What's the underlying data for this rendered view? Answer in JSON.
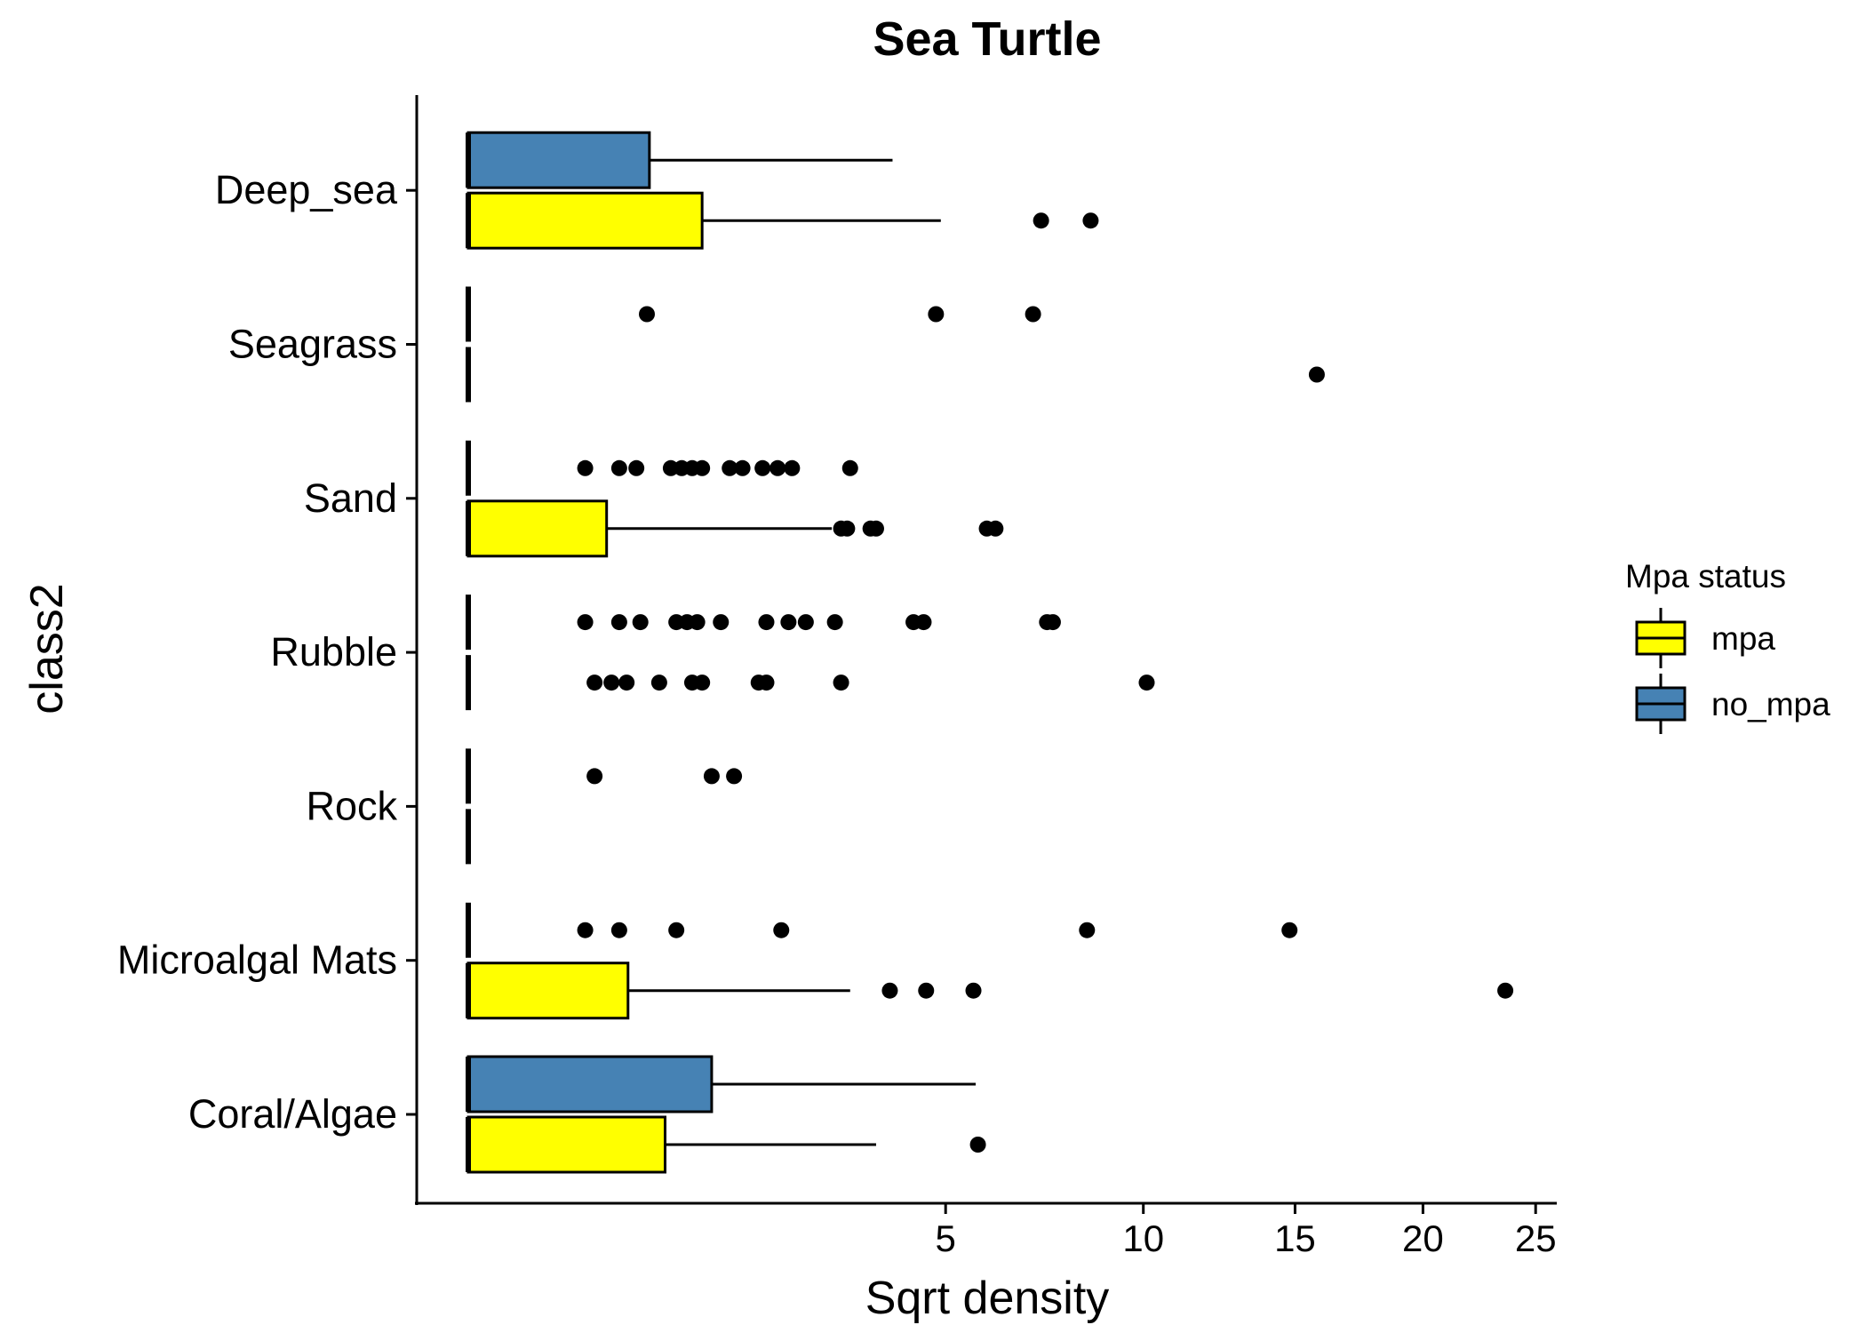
{
  "chart_data": {
    "type": "boxplot",
    "orientation": "horizontal",
    "title": "Sea Turtle",
    "xlabel": "Sqrt density",
    "ylabel": "class2",
    "x_scale": "sqrt",
    "xlim": [
      0,
      25.2
    ],
    "x_ticks": [
      5,
      10,
      15,
      20,
      25
    ],
    "x_tick_labels": [
      "5",
      "10",
      "15",
      "20",
      "25"
    ],
    "categories": [
      "Coral/Algae",
      "Microalgal Mats",
      "Rock",
      "Rubble",
      "Sand",
      "Seagrass",
      "Deep_sea"
    ],
    "legend": {
      "title": "Mpa status",
      "position": "right",
      "entries": [
        {
          "key": "mpa",
          "label": "mpa",
          "color": "#FFFF00"
        },
        {
          "key": "no_mpa",
          "label": "no_mpa",
          "color": "#4682B4"
        }
      ]
    },
    "series": [
      {
        "name": "mpa",
        "color": "#FFFF00",
        "boxes": [
          {
            "category": "Coral/Algae",
            "min": 0,
            "q1": 0,
            "median": 0,
            "q3": 0.85,
            "max": 3.65,
            "outliers": [
              5.7
            ]
          },
          {
            "category": "Microalgal Mats",
            "min": 0,
            "q1": 0,
            "median": 0,
            "q3": 0.56,
            "max": 3.2,
            "outliers": [
              3.9,
              4.6,
              5.6,
              23.6
            ]
          },
          {
            "category": "Rock",
            "min": 0,
            "q1": 0,
            "median": 0,
            "q3": 0,
            "max": 0,
            "outliers": []
          },
          {
            "category": "Rubble",
            "min": 0,
            "q1": 0,
            "median": 0,
            "q3": 0,
            "max": 0,
            "outliers": [
              0.35,
              0.45,
              0.55,
              0.8,
              1.1,
              1.2,
              1.85,
              1.95,
              3.05,
              10.1
            ]
          },
          {
            "category": "Sand",
            "min": 0,
            "q1": 0,
            "median": 0,
            "q3": 0.42,
            "max": 2.9,
            "outliers": [
              3.05,
              3.15,
              3.55,
              3.65,
              5.9,
              6.1
            ]
          },
          {
            "category": "Seagrass",
            "min": 0,
            "q1": 0,
            "median": 0,
            "q3": 0,
            "max": 0,
            "outliers": [
              15.8
            ]
          },
          {
            "category": "Deep_sea",
            "min": 0,
            "q1": 0,
            "median": 0,
            "q3": 1.2,
            "max": 4.9,
            "outliers": [
              7.2,
              8.5
            ]
          }
        ]
      },
      {
        "name": "no_mpa",
        "color": "#4682B4",
        "boxes": [
          {
            "category": "Coral/Algae",
            "min": 0,
            "q1": 0,
            "median": 0,
            "q3": 1.3,
            "max": 5.65,
            "outliers": []
          },
          {
            "category": "Microalgal Mats",
            "min": 0,
            "q1": 0,
            "median": 0,
            "q3": 0,
            "max": 0,
            "outliers": [
              0.3,
              0.5,
              0.95,
              2.15,
              8.4,
              14.8
            ]
          },
          {
            "category": "Rock",
            "min": 0,
            "q1": 0,
            "median": 0,
            "q3": 0,
            "max": 0,
            "outliers": [
              0.35,
              1.3,
              1.55
            ]
          },
          {
            "category": "Rubble",
            "min": 0,
            "q1": 0,
            "median": 0,
            "q3": 0,
            "max": 0,
            "outliers": [
              0.3,
              0.5,
              0.65,
              0.95,
              1.05,
              1.15,
              1.4,
              1.95,
              2.25,
              2.5,
              2.95,
              4.35,
              4.55,
              7.35,
              7.5
            ]
          },
          {
            "category": "Sand",
            "min": 0,
            "q1": 0,
            "median": 0,
            "q3": 0,
            "max": 0,
            "outliers": [
              0.3,
              0.5,
              0.62,
              0.9,
              1.0,
              1.1,
              1.2,
              1.5,
              1.65,
              1.9,
              2.1,
              2.3,
              3.2
            ]
          },
          {
            "category": "Seagrass",
            "min": 0,
            "q1": 0,
            "median": 0,
            "q3": 0,
            "max": 0,
            "outliers": [
              0.7,
              4.8,
              7.0
            ]
          },
          {
            "category": "Deep_sea",
            "min": 0,
            "q1": 0,
            "median": 0,
            "q3": 0.72,
            "max": 3.95,
            "outliers": []
          }
        ]
      }
    ]
  }
}
